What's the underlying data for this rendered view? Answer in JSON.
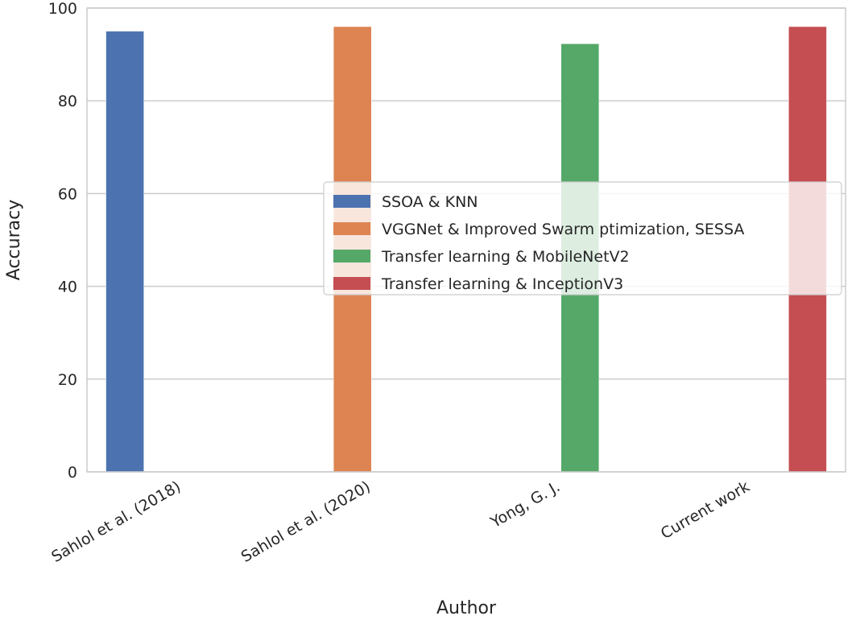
{
  "chart_data": {
    "type": "bar",
    "title": "",
    "xlabel": "Author",
    "ylabel": "Accuracy",
    "categories": [
      "Sahlol et al. (2018)",
      "Sahlol et al. (2020)",
      "Yong, G. J.",
      "Current work"
    ],
    "series": [
      {
        "name": "SSOA & KNN",
        "color": "#4c72b0",
        "values": [
          95,
          null,
          null,
          null
        ]
      },
      {
        "name": "VGGNet & Improved Swarm ptimization, SESSA",
        "color": "#dd8452",
        "values": [
          null,
          96,
          null,
          null
        ]
      },
      {
        "name": "Transfer learning & MobileNetV2",
        "color": "#55a868",
        "values": [
          null,
          null,
          92.3,
          null
        ]
      },
      {
        "name": "Transfer learning & InceptionV3",
        "color": "#c44e52",
        "values": [
          null,
          null,
          null,
          96
        ]
      }
    ],
    "ylim": [
      0,
      100
    ],
    "yticks": [
      0,
      20,
      40,
      60,
      80,
      100
    ],
    "grid": "horizontal",
    "legend_position": "center-right"
  }
}
